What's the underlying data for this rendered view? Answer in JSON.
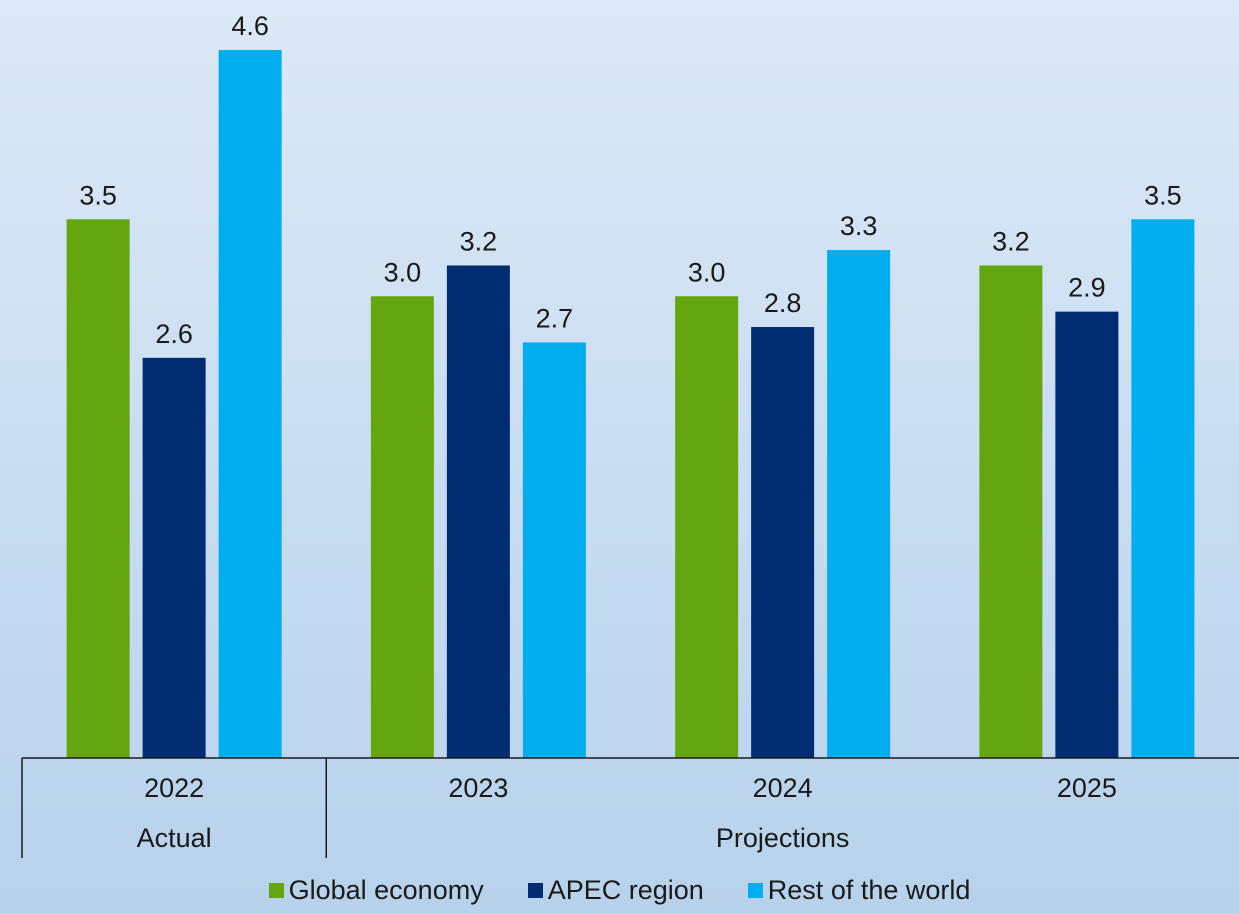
{
  "chart_data": {
    "type": "bar",
    "categories": [
      "2022",
      "2023",
      "2024",
      "2025"
    ],
    "groups": [
      {
        "label": "Actual",
        "categories": [
          "2022"
        ]
      },
      {
        "label": "Projections",
        "categories": [
          "2023",
          "2024",
          "2025"
        ]
      }
    ],
    "series": [
      {
        "name": "Global economy",
        "color": "#63a60f",
        "values": [
          3.5,
          3.0,
          3.0,
          3.2
        ]
      },
      {
        "name": "APEC region",
        "color": "#002d72",
        "values": [
          2.6,
          3.2,
          2.8,
          2.9
        ]
      },
      {
        "name": "Rest of the world",
        "color": "#00aeef",
        "values": [
          4.6,
          2.7,
          3.3,
          3.5
        ]
      }
    ],
    "value_labels": [
      [
        "3.5",
        "3.0",
        "3.0",
        "3.2"
      ],
      [
        "2.6",
        "3.2",
        "2.8",
        "2.9"
      ],
      [
        "4.6",
        "2.7",
        "3.3",
        "3.5"
      ]
    ],
    "ylim": [
      0,
      4.6
    ],
    "grid": false,
    "legend_position": "bottom"
  }
}
